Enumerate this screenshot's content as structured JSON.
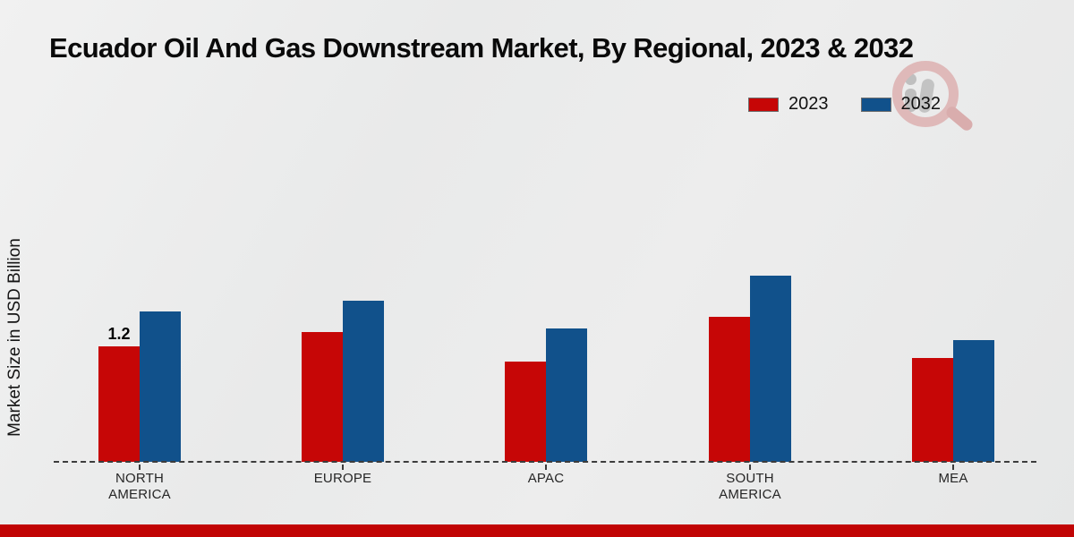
{
  "title": "Ecuador Oil And Gas Downstream Market, By Regional, 2023 & 2032",
  "y_axis_label": "Market Size in USD Billion",
  "legend": {
    "items": [
      {
        "label": "2023",
        "color": "#c60606"
      },
      {
        "label": "2032",
        "color": "#11518b"
      }
    ]
  },
  "watermark_icon": "magnifier-chart-logo-watermark",
  "colors": {
    "series_2023": "#c60606",
    "series_2032": "#11518b",
    "footer_bar": "#c10404",
    "baseline": "#3c3c3c",
    "background": "#eaebeb"
  },
  "chart_data": {
    "type": "bar",
    "title": "Ecuador Oil And Gas Downstream Market, By Regional, 2023 & 2032",
    "categories": [
      "North America",
      "Europe",
      "APAC",
      "South America",
      "MEA"
    ],
    "x_tick_lines": [
      [
        "NORTH",
        "AMERICA"
      ],
      [
        "EUROPE",
        ""
      ],
      [
        "APAC",
        ""
      ],
      [
        "SOUTH",
        "AMERICA"
      ],
      [
        "MEA",
        ""
      ]
    ],
    "series": [
      {
        "name": "2023",
        "color": "#c60606",
        "values": [
          1.2,
          1.35,
          1.04,
          1.51,
          1.08
        ]
      },
      {
        "name": "2032",
        "color": "#11518b",
        "values": [
          1.57,
          1.68,
          1.39,
          1.94,
          1.27
        ]
      }
    ],
    "annotations": [
      {
        "text": "1.2",
        "series_index": 0,
        "category_index": 0
      }
    ],
    "xlabel": "",
    "ylabel": "Market Size in USD Billion",
    "ylim": [
      0,
      2.2
    ],
    "grid": false,
    "legend_position": "top-right",
    "baseline_style": "dashed",
    "y_axis_ticks_visible": false
  }
}
